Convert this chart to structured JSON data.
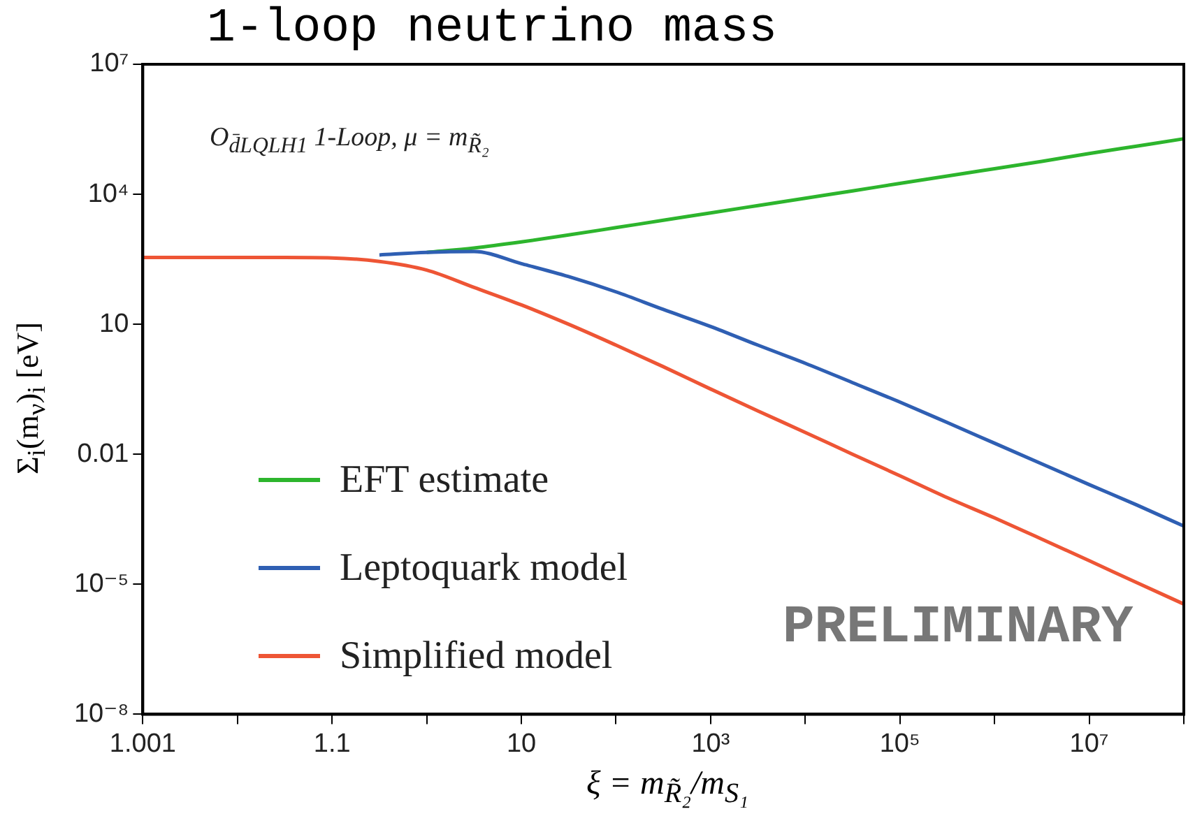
{
  "chart_data": {
    "type": "line",
    "title": "1-loop neutrino mass",
    "xlabel": "ξ = m$_{R̃₂}$/m$_{S₁}$",
    "ylabel": "Σ$_{i}$(m$_{ν}$)$_{i}$ [eV]",
    "annotations": [
      "O$_{d̄LQLH1}$ 1-Loop, μ = m$_{R̃₂}$",
      "PRELIMINARY"
    ],
    "categories": [
      "1.001",
      null,
      null,
      null,
      "1.1",
      null,
      null,
      null,
      "10",
      null,
      null,
      null,
      "10³",
      null,
      null,
      null,
      "10⁵",
      null,
      null,
      null,
      "10⁷",
      null,
      null
    ],
    "log": "y",
    "ylim": [
      1e-08,
      10000000
    ],
    "yticks": [
      {
        "value": 1e-08,
        "label": "10⁻⁸"
      },
      {
        "value": 1e-05,
        "label": "10⁻⁵"
      },
      {
        "value": 0.01,
        "label": "0.01"
      },
      {
        "value": 10,
        "label": "10"
      },
      {
        "value": 10000,
        "label": "10⁴"
      },
      {
        "value": 10000000,
        "label": "10⁷"
      }
    ],
    "grid": false,
    "legend": "bottom left",
    "marker": "none",
    "line_style": "solid",
    "series": [
      {
        "name": "EFT estimate",
        "color": "#2db52d",
        "values": [
          null,
          null,
          null,
          null,
          null,
          null,
          457,
          575,
          794,
          1150,
          1700,
          2510,
          3720,
          5500,
          8130,
          12000,
          17800,
          26300,
          38900,
          57500,
          87100,
          129000,
          191000
        ]
      },
      {
        "name": "Leptoquark model",
        "color": "#2f5fb3",
        "values": [
          null,
          null,
          null,
          null,
          null,
          398,
          457,
          479,
          251,
          126,
          56,
          22,
          8.9,
          3.3,
          1.26,
          0.45,
          0.16,
          0.054,
          0.018,
          0.006,
          0.002,
          0.00068,
          0.00022
        ]
      },
      {
        "name": "Simplified model",
        "color": "#ee5535",
        "values": [
          347,
          347,
          347,
          347,
          339,
          282,
          178,
          71,
          28,
          10,
          3.3,
          1.05,
          0.32,
          0.1,
          0.032,
          0.01,
          0.0032,
          0.001,
          0.00034,
          0.00011,
          3.5e-05,
          1.1e-05,
          3.5e-06
        ]
      }
    ]
  }
}
